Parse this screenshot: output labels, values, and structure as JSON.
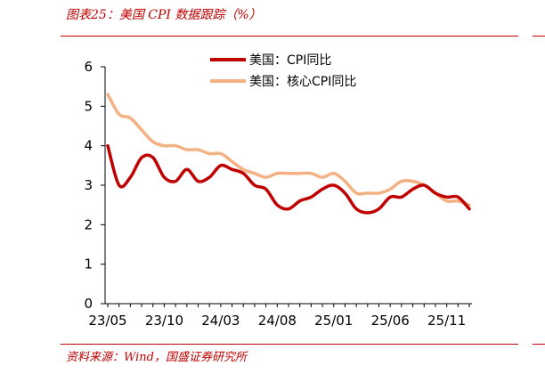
{
  "header": {
    "title": "图表25：美国 CPI 数据跟踪（%）"
  },
  "footer": {
    "source": "资料来源：Wind，国盛证券研究所"
  },
  "chart_data": {
    "type": "line",
    "title": "图表25：美国 CPI 数据跟踪（%）",
    "xlabel": "",
    "ylabel": "",
    "ylim": [
      0,
      6
    ],
    "yticks": [
      "0",
      "1",
      "2",
      "3",
      "4",
      "5",
      "6"
    ],
    "xticks": [
      "23/05",
      "23/10",
      "24/03",
      "24/08",
      "25/01",
      "25/06",
      "25/11"
    ],
    "grid": false,
    "legend_position": "top-center",
    "x": [
      "23/05",
      "23/06",
      "23/07",
      "23/08",
      "23/09",
      "23/10",
      "23/11",
      "23/12",
      "24/01",
      "24/02",
      "24/03",
      "24/04",
      "24/05",
      "24/06",
      "24/07",
      "24/08",
      "24/09",
      "24/10",
      "24/11",
      "24/12",
      "25/01",
      "25/02",
      "25/03",
      "25/04",
      "25/05",
      "25/06",
      "25/07",
      "25/08",
      "25/09",
      "25/10",
      "25/11",
      "25/12",
      "26/01"
    ],
    "series": [
      {
        "name": "美国：CPI同比",
        "color": "#c00000",
        "values": [
          4.0,
          3.0,
          3.2,
          3.7,
          3.7,
          3.2,
          3.1,
          3.4,
          3.1,
          3.2,
          3.5,
          3.4,
          3.3,
          3.0,
          2.9,
          2.5,
          2.4,
          2.6,
          2.7,
          2.9,
          3.0,
          2.8,
          2.4,
          2.3,
          2.4,
          2.7,
          2.7,
          2.9,
          3.0,
          2.8,
          2.7,
          2.7,
          2.4
        ]
      },
      {
        "name": "美国：核心CPI同比",
        "color": "#f4b183",
        "values": [
          5.3,
          4.8,
          4.7,
          4.4,
          4.1,
          4.0,
          4.0,
          3.9,
          3.9,
          3.8,
          3.8,
          3.6,
          3.4,
          3.3,
          3.2,
          3.3,
          3.3,
          3.3,
          3.3,
          3.2,
          3.3,
          3.1,
          2.8,
          2.8,
          2.8,
          2.9,
          3.1,
          3.1,
          3.0,
          2.8,
          2.6,
          2.6,
          2.5
        ]
      }
    ]
  }
}
